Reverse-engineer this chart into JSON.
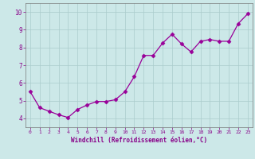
{
  "x": [
    0,
    1,
    2,
    3,
    4,
    5,
    6,
    7,
    8,
    9,
    10,
    11,
    12,
    13,
    14,
    15,
    16,
    17,
    18,
    19,
    20,
    21,
    22,
    23
  ],
  "y": [
    5.5,
    4.6,
    4.4,
    4.2,
    4.05,
    4.5,
    4.75,
    4.95,
    4.95,
    5.05,
    5.5,
    6.35,
    7.55,
    7.55,
    8.25,
    8.75,
    8.2,
    7.75,
    8.35,
    8.45,
    8.35,
    8.35,
    9.35,
    9.9
  ],
  "line_color": "#990099",
  "marker": "D",
  "marker_size": 2.5,
  "bg_color": "#cce8e8",
  "grid_color": "#aacccc",
  "xlabel": "Windchill (Refroidissement éolien,°C)",
  "xlabel_color": "#880088",
  "tick_color": "#880088",
  "ylim": [
    3.5,
    10.5
  ],
  "xlim": [
    -0.5,
    23.5
  ],
  "yticks": [
    4,
    5,
    6,
    7,
    8,
    9,
    10
  ],
  "xticks": [
    0,
    1,
    2,
    3,
    4,
    5,
    6,
    7,
    8,
    9,
    10,
    11,
    12,
    13,
    14,
    15,
    16,
    17,
    18,
    19,
    20,
    21,
    22,
    23
  ]
}
